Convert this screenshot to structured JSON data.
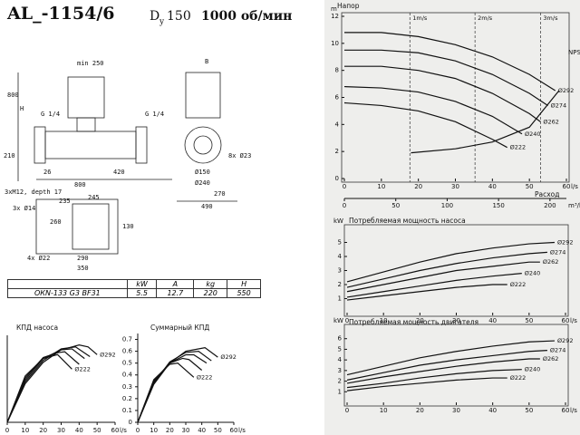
{
  "header": {
    "model": "AL_-1154/6",
    "dn_symbol": "D",
    "dn_subscript": "y",
    "dn": "150",
    "speed": "1000 об/мин"
  },
  "drawing": {
    "labels": [
      "min 250",
      "800",
      "H",
      "G 1/4",
      "210",
      "26",
      "420",
      "800",
      "G 1/4",
      "B",
      "8x Ø23",
      "Ø150",
      "Ø240",
      "270",
      "490",
      "3xM12, depth 17",
      "235",
      "245",
      "3x Ø14",
      "260",
      "130",
      "350",
      "290",
      "4x Ø22"
    ]
  },
  "table": {
    "header": [
      "kW",
      "A",
      "kg",
      "H"
    ],
    "rows": [
      [
        "ОКN-133 G3 BF31",
        "5.5",
        "12.7",
        "220",
        "550"
      ]
    ]
  },
  "chart_data": [
    {
      "type": "line",
      "title": "Напор",
      "y_label": "m",
      "y2_label": "NPSH",
      "x_label": "Расход",
      "x_unit": "l/s",
      "x2_unit": "m³/h",
      "xlim": [
        0,
        60
      ],
      "xticks": [
        0,
        10,
        20,
        30,
        40,
        50,
        60
      ],
      "ylim": [
        0,
        12
      ],
      "yticks": [
        0,
        2,
        4,
        6,
        8,
        10,
        12
      ],
      "x2lim": [
        0,
        216
      ],
      "x2ticks": [
        0,
        50,
        100,
        150,
        200
      ],
      "velocity_lines": [
        {
          "label": "1m/s",
          "x": 17.7
        },
        {
          "label": "2m/s",
          "x": 35.3
        },
        {
          "label": "3m/s",
          "x": 53
        }
      ],
      "series": [
        {
          "name": "Ø292",
          "x": [
            0,
            10,
            20,
            30,
            40,
            50,
            57
          ],
          "values": [
            10.8,
            10.8,
            10.5,
            9.9,
            9.0,
            7.7,
            6.5
          ]
        },
        {
          "name": "Ø274",
          "x": [
            0,
            10,
            20,
            30,
            40,
            50,
            55
          ],
          "values": [
            9.5,
            9.5,
            9.3,
            8.7,
            7.7,
            6.3,
            5.4
          ]
        },
        {
          "name": "Ø262",
          "x": [
            0,
            10,
            20,
            30,
            40,
            50,
            53
          ],
          "values": [
            8.3,
            8.3,
            8.0,
            7.4,
            6.3,
            4.8,
            4.2
          ]
        },
        {
          "name": "Ø240",
          "x": [
            0,
            10,
            20,
            30,
            40,
            48
          ],
          "values": [
            6.8,
            6.7,
            6.4,
            5.7,
            4.6,
            3.3
          ]
        },
        {
          "name": "Ø222",
          "x": [
            0,
            10,
            20,
            30,
            40,
            44
          ],
          "values": [
            5.6,
            5.4,
            5.0,
            4.2,
            2.9,
            2.3
          ]
        },
        {
          "x": [
            18,
            30,
            40,
            50,
            58
          ],
          "values": [
            1.9,
            2.2,
            2.7,
            3.8,
            6.5
          ]
        }
      ]
    },
    {
      "type": "line",
      "title": "Потребляемая мощность насоса",
      "y_label": "kW",
      "x_unit": "l/s",
      "xlim": [
        0,
        60
      ],
      "xticks": [
        0,
        10,
        20,
        30,
        40,
        50,
        60
      ],
      "ylim": [
        0,
        6
      ],
      "yticks": [
        1,
        2,
        3,
        4,
        5
      ],
      "series": [
        {
          "name": "Ø292",
          "x": [
            0,
            10,
            20,
            30,
            40,
            50,
            57
          ],
          "values": [
            2.2,
            2.9,
            3.6,
            4.2,
            4.6,
            4.9,
            5.0
          ]
        },
        {
          "name": "Ø274",
          "x": [
            0,
            10,
            20,
            30,
            40,
            50,
            55
          ],
          "values": [
            1.8,
            2.4,
            3.0,
            3.5,
            3.9,
            4.2,
            4.3
          ]
        },
        {
          "name": "Ø262",
          "x": [
            0,
            10,
            20,
            30,
            40,
            50,
            53
          ],
          "values": [
            1.5,
            2.0,
            2.5,
            3.0,
            3.3,
            3.6,
            3.6
          ]
        },
        {
          "name": "Ø240",
          "x": [
            0,
            10,
            20,
            30,
            40,
            48
          ],
          "values": [
            1.1,
            1.5,
            1.9,
            2.3,
            2.6,
            2.8
          ]
        },
        {
          "name": "Ø222",
          "x": [
            0,
            10,
            20,
            30,
            40,
            44
          ],
          "values": [
            0.9,
            1.2,
            1.5,
            1.8,
            2.0,
            2.0
          ]
        }
      ]
    },
    {
      "type": "line",
      "title": "Потребляемая мощность двигателя",
      "y_label": "kW",
      "x_unit": "l/s",
      "xlim": [
        0,
        60
      ],
      "xticks": [
        0,
        10,
        20,
        30,
        40,
        50,
        60
      ],
      "ylim": [
        0,
        7
      ],
      "yticks": [
        1,
        2,
        3,
        4,
        5,
        6
      ],
      "series": [
        {
          "name": "Ø292",
          "x": [
            0,
            10,
            20,
            30,
            40,
            50,
            57
          ],
          "values": [
            2.6,
            3.4,
            4.2,
            4.8,
            5.3,
            5.7,
            5.8
          ]
        },
        {
          "name": "Ø274",
          "x": [
            0,
            10,
            20,
            30,
            40,
            50,
            55
          ],
          "values": [
            2.1,
            2.8,
            3.5,
            4.0,
            4.4,
            4.8,
            4.9
          ]
        },
        {
          "name": "Ø262",
          "x": [
            0,
            10,
            20,
            30,
            40,
            50,
            53
          ],
          "values": [
            1.8,
            2.4,
            2.9,
            3.4,
            3.8,
            4.1,
            4.1
          ]
        },
        {
          "name": "Ø240",
          "x": [
            0,
            10,
            20,
            30,
            40,
            48
          ],
          "values": [
            1.4,
            1.8,
            2.3,
            2.7,
            3.0,
            3.1
          ]
        },
        {
          "name": "Ø222",
          "x": [
            0,
            10,
            20,
            30,
            40,
            44
          ],
          "values": [
            1.1,
            1.5,
            1.8,
            2.1,
            2.3,
            2.3
          ]
        }
      ]
    },
    {
      "type": "line",
      "title": "КПД насоса",
      "x_unit": "l/s",
      "xlim": [
        0,
        60
      ],
      "xticks": [
        0,
        10,
        20,
        30,
        40,
        50,
        60
      ],
      "ylim": [
        0,
        90
      ],
      "series": [
        {
          "name": "Ø292",
          "x": [
            0,
            10,
            20,
            30,
            40,
            45,
            50
          ],
          "values": [
            0,
            40,
            62,
            75,
            80,
            78,
            70
          ]
        },
        {
          "x": [
            0,
            10,
            20,
            30,
            38,
            46
          ],
          "values": [
            0,
            42,
            64,
            76,
            78,
            68
          ]
        },
        {
          "x": [
            0,
            10,
            20,
            30,
            36,
            43
          ],
          "values": [
            0,
            44,
            66,
            75,
            76,
            66
          ]
        },
        {
          "x": [
            0,
            10,
            20,
            28,
            32,
            40
          ],
          "values": [
            0,
            46,
            67,
            72,
            73,
            60
          ]
        },
        {
          "name": "Ø222",
          "x": [
            0,
            10,
            20,
            28,
            36
          ],
          "values": [
            0,
            48,
            66,
            70,
            55
          ]
        }
      ]
    },
    {
      "type": "line",
      "title": "Суммарный КПД",
      "x_unit": "l/s",
      "xlim": [
        0,
        60
      ],
      "xticks": [
        0,
        10,
        20,
        30,
        40,
        50,
        60
      ],
      "ylim": [
        0,
        0.75
      ],
      "yticks": [
        0,
        0.1,
        0.2,
        0.3,
        0.4,
        0.5,
        0.6,
        0.7
      ],
      "series": [
        {
          "name": "Ø292",
          "x": [
            0,
            10,
            20,
            30,
            42,
            50
          ],
          "values": [
            0,
            0.32,
            0.5,
            0.6,
            0.63,
            0.55
          ]
        },
        {
          "x": [
            0,
            10,
            20,
            30,
            38,
            46
          ],
          "values": [
            0,
            0.33,
            0.51,
            0.59,
            0.6,
            0.52
          ]
        },
        {
          "x": [
            0,
            10,
            20,
            30,
            35,
            43
          ],
          "values": [
            0,
            0.34,
            0.5,
            0.57,
            0.57,
            0.5
          ]
        },
        {
          "x": [
            0,
            10,
            20,
            28,
            32,
            40
          ],
          "values": [
            0,
            0.35,
            0.5,
            0.54,
            0.53,
            0.44
          ]
        },
        {
          "name": "Ø222",
          "x": [
            0,
            10,
            20,
            25,
            35
          ],
          "values": [
            0,
            0.36,
            0.49,
            0.5,
            0.38
          ]
        }
      ]
    }
  ]
}
